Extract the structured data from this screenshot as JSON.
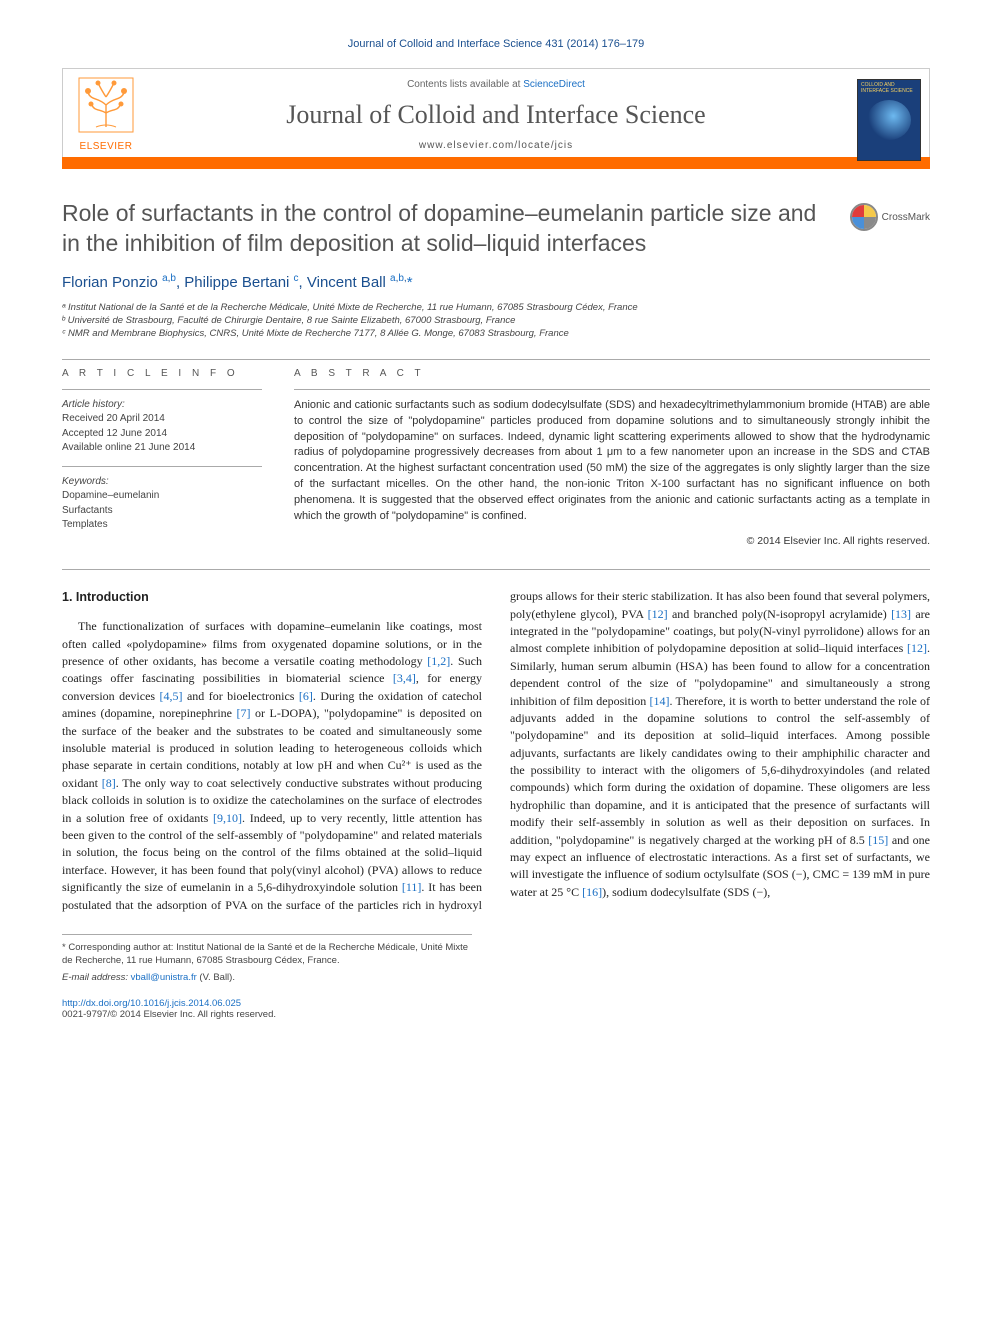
{
  "citation": "Journal of Colloid and Interface Science 431 (2014) 176–179",
  "header": {
    "contents_prefix": "Contents lists available at ",
    "contents_link": "ScienceDirect",
    "journal_title": "Journal of Colloid and Interface Science",
    "journal_url": "www.elsevier.com/locate/jcis",
    "publisher_name": "ELSEVIER",
    "cover_label": "COLLOID AND INTERFACE SCIENCE"
  },
  "crossmark_label": "CrossMark",
  "article": {
    "title": "Role of surfactants in the control of dopamine–eumelanin particle size and in the inhibition of film deposition at solid–liquid interfaces",
    "authors_html": "Florian Ponzio <sup><a>a</a>,<a>b</a></sup>, Philippe Bertani <sup><a>c</a></sup>, Vincent Ball <sup><a>a</a>,<a>b</a>,</sup><a>*</a>",
    "affiliations": [
      "ᵃ Institut National de la Santé et de la Recherche Médicale, Unité Mixte de Recherche, 11 rue Humann, 67085 Strasbourg Cédex, France",
      "ᵇ Université de Strasbourg, Faculté de Chirurgie Dentaire, 8 rue Sainte Elizabeth, 67000 Strasbourg, France",
      "ᶜ NMR and Membrane Biophysics, CNRS, Unité Mixte de Recherche 7177, 8 Allée G. Monge, 67083 Strasbourg, France"
    ]
  },
  "article_info": {
    "label": "A R T I C L E   I N F O",
    "history_label": "Article history:",
    "received": "Received 20 April 2014",
    "accepted": "Accepted 12 June 2014",
    "online": "Available online 21 June 2014",
    "keywords_label": "Keywords:",
    "keywords": [
      "Dopamine–eumelanin",
      "Surfactants",
      "Templates"
    ]
  },
  "abstract": {
    "label": "A B S T R A C T",
    "text": "Anionic and cationic surfactants such as sodium dodecylsulfate (SDS) and hexadecyltrimethylammonium bromide (HTAB) are able to control the size of \"polydopamine\" particles produced from dopamine solutions and to simultaneously strongly inhibit the deposition of \"polydopamine\" on surfaces. Indeed, dynamic light scattering experiments allowed to show that the hydrodynamic radius of polydopamine progressively decreases from about 1 μm to a few nanometer upon an increase in the SDS and CTAB concentration. At the highest surfactant concentration used (50 mM) the size of the aggregates is only slightly larger than the size of the surfactant micelles. On the other hand, the non-ionic Triton X-100 surfactant has no significant influence on both phenomena. It is suggested that the observed effect originates from the anionic and cationic surfactants acting as a template in which the growth of \"polydopamine\" is confined.",
    "copyright": "© 2014 Elsevier Inc. All rights reserved."
  },
  "body": {
    "heading": "1. Introduction",
    "col1": "The functionalization of surfaces with dopamine–eumelanin like coatings, most often called «polydopamine» films from oxygenated dopamine solutions, or in the presence of other oxidants, has become a versatile coating methodology [1,2]. Such coatings offer fascinating possibilities in biomaterial science [3,4], for energy conversion devices [4,5] and for bioelectronics [6]. During the oxidation of catechol amines (dopamine, norepinephrine [7] or L-DOPA), \"polydopamine\" is deposited on the surface of the beaker and the substrates to be coated and simultaneously some insoluble material is produced in solution leading to heterogeneous colloids which phase separate in certain conditions, notably at low pH and when Cu²⁺ is used as the oxidant [8]. The only way to coat selectively conductive substrates without producing black colloids in solution is to oxidize the catecholamines on the surface of electrodes in a solution free of oxidants [9,10]. Indeed, up to very recently, little attention has been given to the control of the self-assembly of \"polydopamine\" and related materials in solution, the focus being on the control of the films obtained at the solid–liquid interface. However, it has been found that poly(vinyl ",
    "col2": "alcohol) (PVA) allows to reduce significantly the size of eumelanin in a 5,6-dihydroxyindole solution [11]. It has been postulated that the adsorption of PVA on the surface of the particles rich in hydroxyl groups allows for their steric stabilization. It has also been found that several polymers, poly(ethylene glycol), PVA [12] and branched poly(N-isopropyl acrylamide) [13] are integrated in the \"polydopamine\" coatings, but poly(N-vinyl pyrrolidone) allows for an almost complete inhibition of polydopamine deposition at solid–liquid interfaces [12]. Similarly, human serum albumin (HSA) has been found to allow for a concentration dependent control of the size of \"polydopamine\" and simultaneously a strong inhibition of film deposition [14]. Therefore, it is worth to better understand the role of adjuvants added in the dopamine solutions to control the self-assembly of \"polydopamine\" and its deposition at solid–liquid interfaces. Among possible adjuvants, surfactants are likely candidates owing to their amphiphilic character and the possibility to interact with the oligomers of 5,6-dihydroxyindoles (and related compounds) which form during the oxidation of dopamine. These oligomers are less hydrophilic than dopamine, and it is anticipated that the presence of surfactants will modify their self-assembly in solution as well as their deposition on surfaces. In addition, \"polydopamine\" is negatively charged at the working pH of 8.5 [15] and one may expect an influence of electrostatic interactions. As a first set of surfactants, we will investigate the influence of sodium octylsulfate (SOS (−), CMC = 139 mM in pure water at 25 °C [16]), sodium dodecylsulfate (SDS (−),"
  },
  "footnotes": {
    "corr": "* Corresponding author at: Institut National de la Santé et de la Recherche Médicale, Unité Mixte de Recherche, 11 rue Humann, 67085 Strasbourg Cédex, France.",
    "email_label": "E-mail address: ",
    "email": "vball@unistra.fr",
    "email_suffix": " (V. Ball)."
  },
  "bottom": {
    "doi": "http://dx.doi.org/10.1016/j.jcis.2014.06.025",
    "issn_line": "0021-9797/© 2014 Elsevier Inc. All rights reserved."
  },
  "colors": {
    "link": "#1a6fc4",
    "accent": "#ff6c00",
    "heading": "#555555"
  }
}
